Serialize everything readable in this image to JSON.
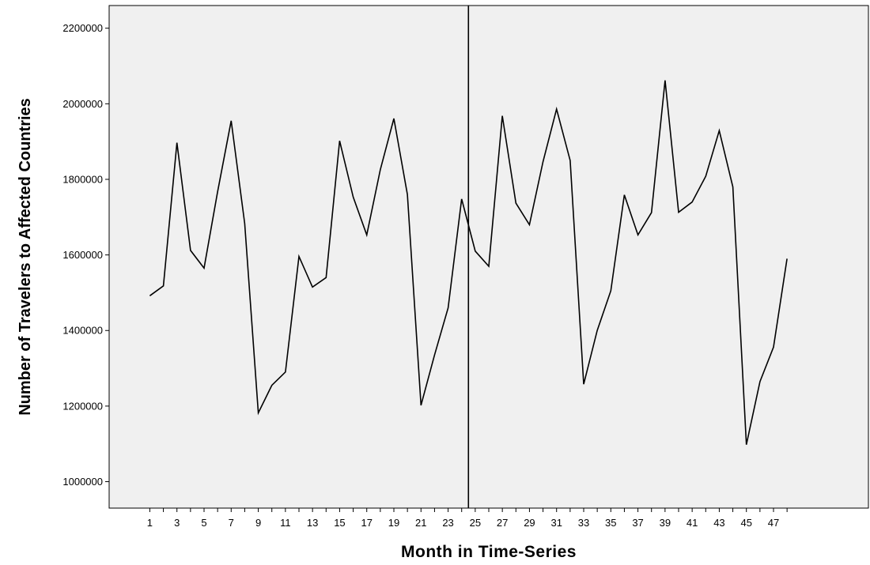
{
  "chart_data": {
    "type": "line",
    "title": "",
    "xlabel": "Month in Time-Series",
    "ylabel": "Number of Travelers to Affected Countries",
    "xlim": [
      -2,
      54
    ],
    "ylim": [
      930000,
      2260000
    ],
    "grid": false,
    "x_tick_labels": [
      "1",
      "3",
      "5",
      "7",
      "9",
      "11",
      "13",
      "15",
      "17",
      "19",
      "21",
      "23",
      "25",
      "27",
      "29",
      "31",
      "33",
      "35",
      "37",
      "39",
      "41",
      "43",
      "45",
      "47"
    ],
    "y_tick_labels": [
      "1000000",
      "1200000",
      "1400000",
      "1600000",
      "1800000",
      "2000000",
      "2200000"
    ],
    "y_ticks": [
      1000000,
      1200000,
      1400000,
      1600000,
      1800000,
      2000000,
      2200000
    ],
    "reference_line_x": 24.5,
    "series": [
      {
        "x": [
          1,
          2,
          3,
          4,
          5,
          6,
          7,
          8,
          9,
          10,
          11,
          12,
          13,
          14,
          15,
          16,
          17,
          18,
          19,
          20,
          21,
          22,
          23,
          24,
          25,
          26,
          27,
          28,
          29,
          30,
          31,
          32,
          33,
          34,
          35,
          36,
          37,
          38,
          39,
          40,
          41,
          42,
          43,
          44,
          45,
          46,
          47,
          48
        ],
        "values": [
          1492000,
          1518000,
          1897000,
          1612000,
          1565000,
          1767000,
          1955000,
          1683000,
          1182000,
          1255000,
          1290000,
          1596000,
          1515000,
          1540000,
          1902000,
          1753000,
          1653000,
          1826000,
          1961000,
          1760000,
          1202000,
          1335000,
          1460000,
          1748000,
          1610000,
          1570000,
          1968000,
          1737000,
          1680000,
          1847000,
          1986000,
          1850000,
          1258000,
          1400000,
          1505000,
          1759000,
          1653000,
          1712000,
          2062000,
          1713000,
          1740000,
          1808000,
          1929000,
          1780000,
          1098000,
          1265000,
          1356000,
          1590000
        ]
      }
    ]
  },
  "colors": {
    "plot_background": "#f0f0f0",
    "line": "#000000",
    "axis": "#000000"
  }
}
